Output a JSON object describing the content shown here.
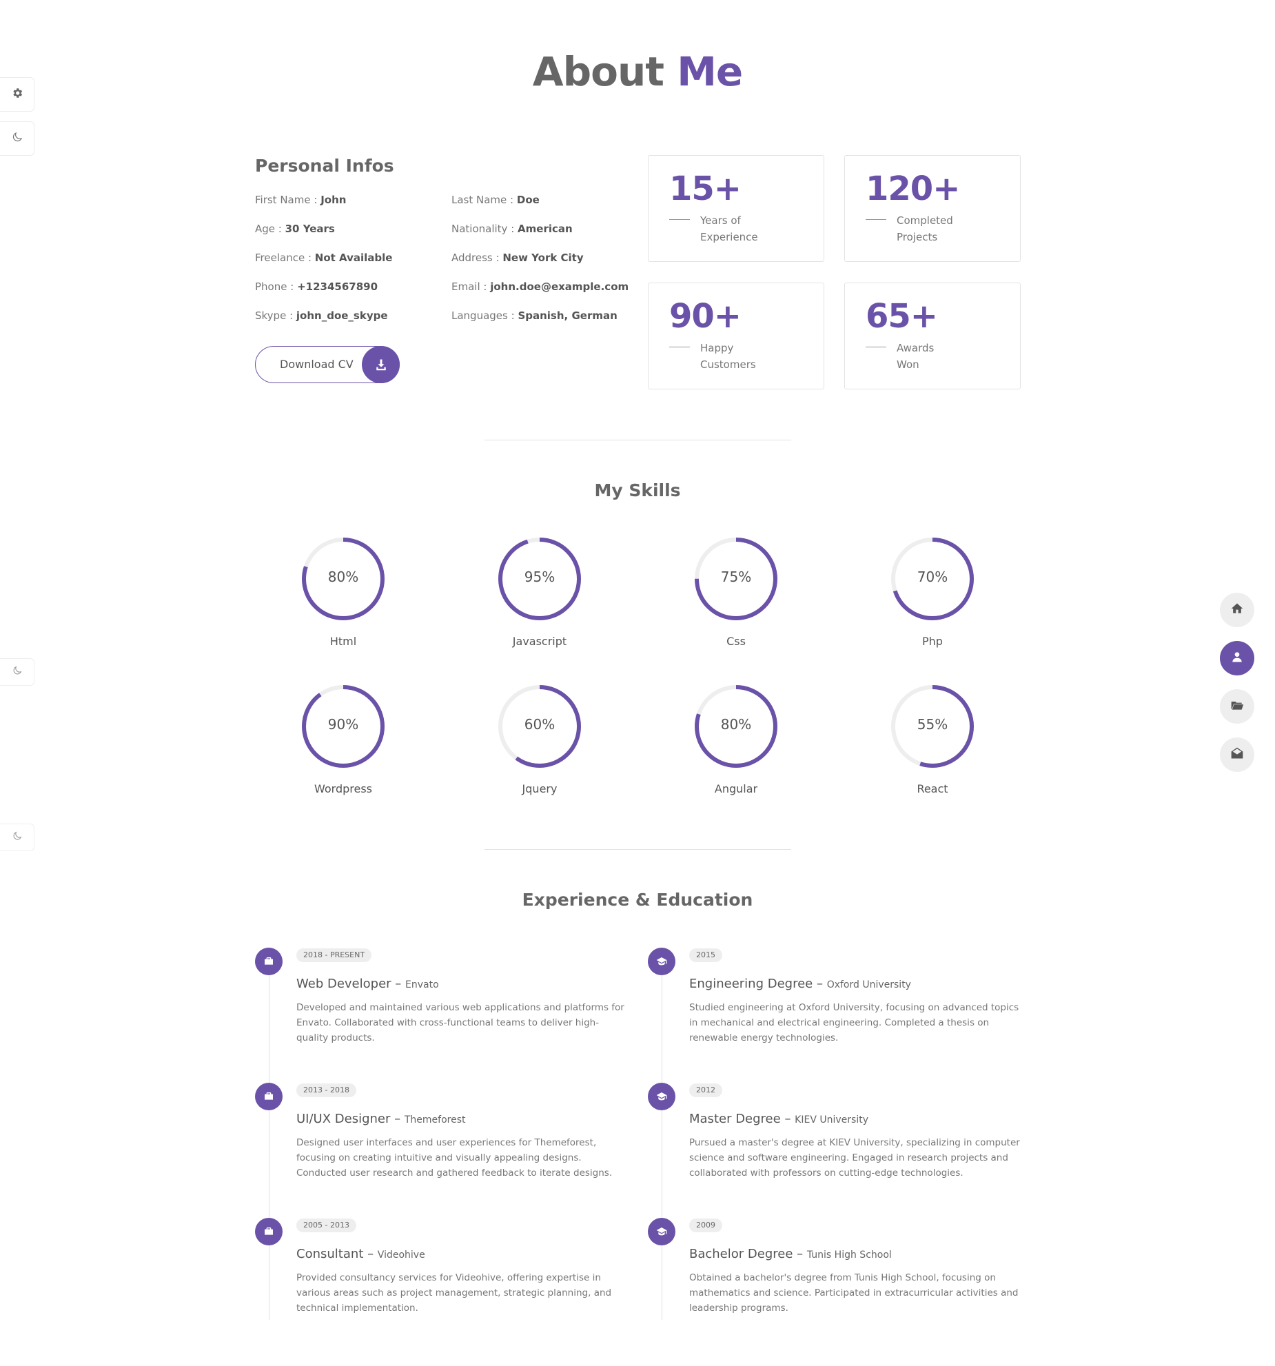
{
  "page": {
    "title_main": "About",
    "title_accent": "Me"
  },
  "personal": {
    "title": "Personal Infos",
    "left": [
      {
        "label": "First Name :",
        "value": "John"
      },
      {
        "label": "Age :",
        "value": "30 Years"
      },
      {
        "label": "Freelance :",
        "value": "Not Available"
      },
      {
        "label": "Phone :",
        "value": "+1234567890"
      },
      {
        "label": "Skype :",
        "value": "john_doe_skype"
      }
    ],
    "right": [
      {
        "label": "Last Name :",
        "value": "Doe"
      },
      {
        "label": "Nationality :",
        "value": "American"
      },
      {
        "label": "Address :",
        "value": "New York City"
      },
      {
        "label": "Email :",
        "value": "john.doe@example.com"
      },
      {
        "label": "Languages :",
        "value": "Spanish, German"
      }
    ],
    "download_label": "Download CV"
  },
  "stats": [
    {
      "number": "15+",
      "line1": "Years of",
      "line2": "Experience"
    },
    {
      "number": "120+",
      "line1": "Completed",
      "line2": "Projects"
    },
    {
      "number": "90+",
      "line1": "Happy",
      "line2": "Customers"
    },
    {
      "number": "65+",
      "line1": "Awards",
      "line2": "Won"
    }
  ],
  "skills": {
    "title": "My Skills",
    "items": [
      {
        "name": "Html",
        "label": "80%",
        "value": 80
      },
      {
        "name": "Javascript",
        "label": "95%",
        "value": 95
      },
      {
        "name": "Css",
        "label": "75%",
        "value": 75
      },
      {
        "name": "Php",
        "label": "70%",
        "value": 70
      },
      {
        "name": "Wordpress",
        "label": "90%",
        "value": 90
      },
      {
        "name": "Jquery",
        "label": "60%",
        "value": 60
      },
      {
        "name": "Angular",
        "label": "80%",
        "value": 80
      },
      {
        "name": "React",
        "label": "55%",
        "value": 55
      }
    ]
  },
  "timeline": {
    "title": "Experience & Education",
    "experience": [
      {
        "date": "2018 - PRESENT",
        "role": "Web Developer",
        "org": "Envato",
        "desc": "Developed and maintained various web applications and platforms for Envato. Collaborated with cross-functional teams to deliver high-quality products."
      },
      {
        "date": "2013 - 2018",
        "role": "UI/UX Designer",
        "org": "Themeforest",
        "desc": "Designed user interfaces and user experiences for Themeforest, focusing on creating intuitive and visually appealing designs. Conducted user research and gathered feedback to iterate designs."
      },
      {
        "date": "2005 - 2013",
        "role": "Consultant",
        "org": "Videohive",
        "desc": "Provided consultancy services for Videohive, offering expertise in various areas such as project management, strategic planning, and technical implementation."
      }
    ],
    "education": [
      {
        "date": "2015",
        "role": "Engineering Degree",
        "org": "Oxford University",
        "desc": "Studied engineering at Oxford University, focusing on advanced topics in mechanical and electrical engineering. Completed a thesis on renewable energy technologies."
      },
      {
        "date": "2012",
        "role": "Master Degree",
        "org": "KIEV University",
        "desc": "Pursued a master's degree at KIEV University, specializing in computer science and software engineering. Engaged in research projects and collaborated with professors on cutting-edge technologies."
      },
      {
        "date": "2009",
        "role": "Bachelor Degree",
        "org": "Tunis High School",
        "desc": "Obtained a bachelor's degree from Tunis High School, focusing on mathematics and science. Participated in extracurricular activities and leadership programs."
      }
    ]
  },
  "icons": {
    "side": [
      "gear-icon",
      "moon-icon"
    ],
    "nav": [
      "home-icon",
      "user-icon",
      "folder-icon",
      "envelope-icon"
    ],
    "experience": "briefcase-icon",
    "education": "graduation-cap-icon",
    "download": "download-icon"
  },
  "colors": {
    "accent": "#6a52a8",
    "text": "#666666",
    "track": "#eeeeee"
  }
}
